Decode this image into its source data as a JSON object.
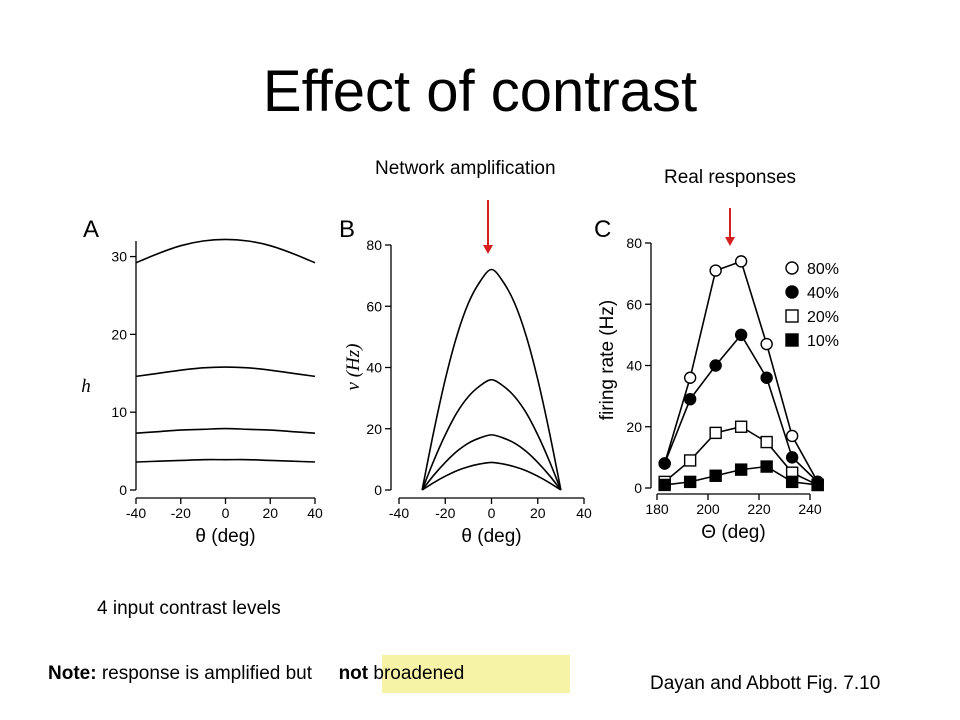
{
  "slide": {
    "title": "Effect of contrast",
    "network_label": "Network amplification",
    "real_label": "Real responses",
    "input_levels": "4 input contrast levels",
    "note_bold": "Note:",
    "note_text": "response is amplified but",
    "highlight_bold": "not",
    "highlight_text": "broadened",
    "citation": "Dayan and Abbott Fig. 7.10",
    "accent_color": "#d62020",
    "highlight_color": "#f7f3a6"
  },
  "chart_data": [
    {
      "panel": "A",
      "type": "line",
      "xlabel": "θ (deg)",
      "ylabel": "h",
      "xlim": [
        -40,
        40
      ],
      "ylim": [
        0,
        32
      ],
      "xticks": [
        -40,
        -20,
        0,
        20,
        40
      ],
      "yticks": [
        0,
        10,
        20,
        30
      ],
      "x": [
        -40,
        -30,
        -20,
        -10,
        0,
        10,
        20,
        30,
        40
      ],
      "series": [
        {
          "values": [
            29.2,
            30.4,
            31.4,
            32.0,
            32.2,
            32.0,
            31.4,
            30.4,
            29.2
          ]
        },
        {
          "values": [
            14.6,
            15.0,
            15.4,
            15.7,
            15.8,
            15.7,
            15.4,
            15.0,
            14.6
          ]
        },
        {
          "values": [
            7.3,
            7.5,
            7.7,
            7.8,
            7.9,
            7.8,
            7.7,
            7.5,
            7.3
          ]
        },
        {
          "values": [
            3.6,
            3.7,
            3.8,
            3.9,
            3.9,
            3.9,
            3.8,
            3.7,
            3.6
          ]
        }
      ]
    },
    {
      "panel": "B",
      "type": "line",
      "xlabel": "θ (deg)",
      "ylabel": "v (Hz)",
      "xlim": [
        -40,
        40
      ],
      "ylim": [
        0,
        80
      ],
      "xticks": [
        -40,
        -20,
        0,
        20,
        40
      ],
      "yticks": [
        0,
        20,
        40,
        60,
        80
      ],
      "x": [
        -30,
        -25,
        -20,
        -15,
        -10,
        -5,
        0,
        5,
        10,
        15,
        20,
        25,
        30
      ],
      "series": [
        {
          "values": [
            0,
            19.0,
            36.1,
            50.3,
            61.0,
            68.0,
            72.0,
            68.0,
            61.0,
            50.3,
            36.1,
            19.0,
            0
          ]
        },
        {
          "values": [
            0,
            9.5,
            18.0,
            25.2,
            30.5,
            34.0,
            36.0,
            34.0,
            30.5,
            25.2,
            18.0,
            9.5,
            0
          ]
        },
        {
          "values": [
            0,
            4.8,
            9.0,
            12.6,
            15.3,
            17.0,
            18.0,
            17.0,
            15.3,
            12.6,
            9.0,
            4.8,
            0
          ]
        },
        {
          "values": [
            0,
            2.4,
            4.5,
            6.3,
            7.6,
            8.5,
            9.0,
            8.5,
            7.6,
            6.3,
            4.5,
            2.4,
            0
          ]
        }
      ]
    },
    {
      "panel": "C",
      "type": "line",
      "xlabel": "Θ (deg)",
      "ylabel": "firing rate (Hz)",
      "xlim": [
        180,
        240
      ],
      "ylim": [
        0,
        80
      ],
      "xticks": [
        180,
        200,
        220,
        240
      ],
      "yticks": [
        0,
        20,
        40,
        60,
        80
      ],
      "legend_position": "top-right",
      "x": [
        183,
        193,
        203,
        213,
        223,
        233,
        243
      ],
      "series": [
        {
          "name": "80%",
          "marker": "open-circle",
          "values": [
            8,
            36,
            71,
            74,
            47,
            17,
            2
          ]
        },
        {
          "name": "40%",
          "marker": "filled-circle",
          "values": [
            8,
            29,
            40,
            50,
            36,
            10,
            2
          ]
        },
        {
          "name": "20%",
          "marker": "open-square",
          "values": [
            2,
            9,
            18,
            20,
            15,
            5,
            1
          ]
        },
        {
          "name": "10%",
          "marker": "filled-square",
          "values": [
            1,
            2,
            4,
            6,
            7,
            2,
            1
          ]
        }
      ]
    }
  ]
}
